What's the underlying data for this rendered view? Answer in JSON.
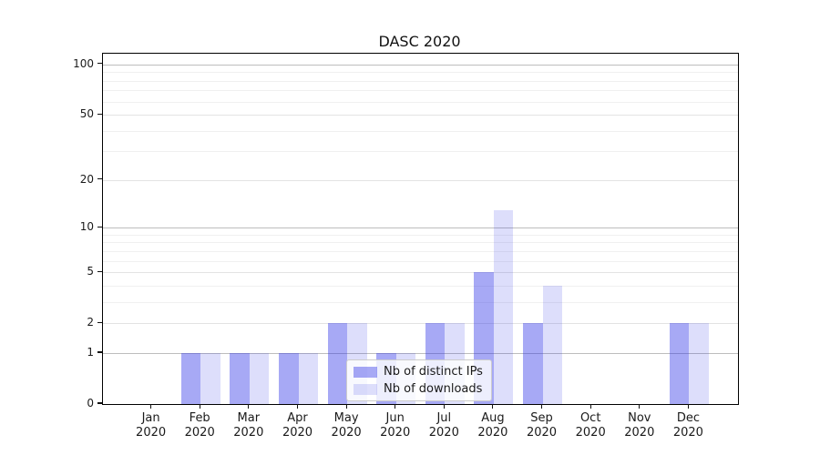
{
  "chart_data": {
    "type": "bar",
    "title": "DASC 2020",
    "year": "2020",
    "months": [
      "Jan",
      "Feb",
      "Mar",
      "Apr",
      "May",
      "Jun",
      "Jul",
      "Aug",
      "Sep",
      "Oct",
      "Nov",
      "Dec"
    ],
    "categories": [
      "Jan 2020",
      "Feb 2020",
      "Mar 2020",
      "Apr 2020",
      "May 2020",
      "Jun 2020",
      "Jul 2020",
      "Aug 2020",
      "Sep 2020",
      "Oct 2020",
      "Nov 2020",
      "Dec 2020"
    ],
    "series": [
      {
        "name": "Nb of distinct IPs",
        "values": [
          0,
          1,
          1,
          1,
          2,
          1,
          2,
          5,
          2,
          0,
          0,
          2
        ],
        "color_rgba": "rgba(46,51,230,0.42)",
        "color_display": "#a8aaf5"
      },
      {
        "name": "Nb of downloads",
        "values": [
          0,
          1,
          1,
          1,
          2,
          1,
          2,
          13,
          4,
          0,
          0,
          2
        ],
        "color_rgba": "rgba(46,51,230,0.16)",
        "color_display": "#dbdcfa"
      }
    ],
    "yscale": "symlog",
    "ylim": [
      0,
      116
    ],
    "yticks": [
      0,
      1,
      2,
      5,
      10,
      20,
      50,
      100
    ],
    "yticks_minor": [
      3,
      4,
      6,
      7,
      8,
      9,
      30,
      40,
      60,
      70,
      80,
      90
    ],
    "grid": true,
    "grid_colors": {
      "decade": "#bdbdbd",
      "major": "#e3e3e3",
      "minor": "#f0f0f0"
    },
    "legend_position": "lower center",
    "xlabel": "",
    "ylabel": ""
  }
}
